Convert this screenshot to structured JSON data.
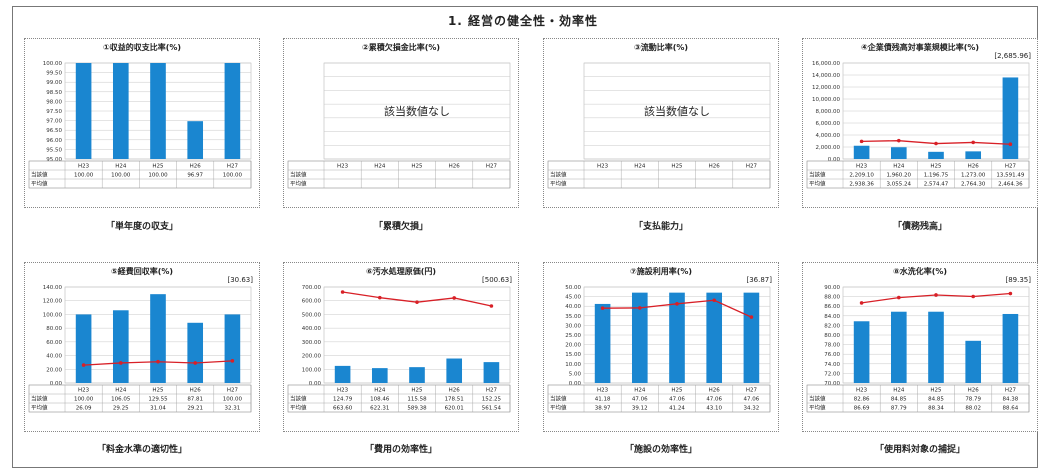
{
  "page_title": "1. 経営の健全性・効率性",
  "no_data_text": "該当数値なし",
  "row_labels": [
    "当該値",
    "平均値"
  ],
  "colors": {
    "bar": "#1a86d0",
    "line": "#d82027",
    "grid": "#c8c8c8"
  },
  "chart_data": [
    {
      "id": "c1",
      "type": "bar",
      "title": "①収益的収支比率(%)",
      "caption": "「単年度の収支」",
      "avg_label": "",
      "categories": [
        "H23",
        "H24",
        "H25",
        "H26",
        "H27"
      ],
      "ylim": [
        95.0,
        100.0
      ],
      "y_ticks": [
        "100.00",
        "99.50",
        "99.00",
        "98.50",
        "98.00",
        "97.50",
        "97.00",
        "96.50",
        "96.00",
        "95.50",
        "95.00"
      ],
      "series": [
        {
          "name": "当該値",
          "values": [
            100.0,
            100.0,
            100.0,
            96.97,
            100.0
          ]
        }
      ],
      "table": [
        [
          "100.00",
          "100.00",
          "100.00",
          "96.97",
          "100.00"
        ],
        [
          "",
          "",
          "",
          "",
          ""
        ]
      ]
    },
    {
      "id": "c2",
      "type": "bar",
      "title": "②累積欠損金比率(%)",
      "caption": "「累積欠損」",
      "avg_label": "",
      "no_data": true,
      "categories": [
        "H23",
        "H24",
        "H25",
        "H26",
        "H27"
      ],
      "ylim": [
        0,
        1
      ],
      "y_ticks": [
        "",
        "",
        "",
        "",
        "",
        "",
        "",
        ""
      ],
      "series": [],
      "table": [
        [
          "",
          "",
          "",
          "",
          ""
        ],
        [
          "",
          "",
          "",
          "",
          ""
        ]
      ]
    },
    {
      "id": "c3",
      "type": "bar",
      "title": "③流動比率(%)",
      "caption": "「支払能力」",
      "avg_label": "",
      "no_data": true,
      "categories": [
        "H23",
        "H24",
        "H25",
        "H26",
        "H27"
      ],
      "ylim": [
        0,
        1
      ],
      "y_ticks": [
        "",
        "",
        "",
        "",
        "",
        "",
        "",
        ""
      ],
      "series": [],
      "table": [
        [
          "",
          "",
          "",
          "",
          ""
        ],
        [
          "",
          "",
          "",
          "",
          ""
        ]
      ]
    },
    {
      "id": "c4",
      "type": "bar",
      "title": "④企業債残高対事業規模比率(%)",
      "caption": "「債務残高」",
      "avg_label": "[2,685.96]",
      "categories": [
        "H23",
        "H24",
        "H25",
        "H26",
        "H27"
      ],
      "ylim": [
        0,
        16000
      ],
      "y_ticks": [
        "16,000.00",
        "14,000.00",
        "12,000.00",
        "10,000.00",
        "8,000.00",
        "6,000.00",
        "4,000.00",
        "2,000.00",
        "0.00"
      ],
      "series": [
        {
          "name": "当該値",
          "values": [
            2209.1,
            1960.2,
            1196.75,
            1273.0,
            13591.49
          ]
        },
        {
          "name": "平均値",
          "values": [
            2938.36,
            3055.24,
            2574.47,
            2764.3,
            2464.36
          ]
        }
      ],
      "table": [
        [
          "2,209.10",
          "1,960.20",
          "1,196.75",
          "1,273.00",
          "13,591.49"
        ],
        [
          "2,938.36",
          "3,055.24",
          "2,574.47",
          "2,764.30",
          "2,464.36"
        ]
      ]
    },
    {
      "id": "c5",
      "type": "bar",
      "title": "⑤経費回収率(%)",
      "caption": "「料金水準の適切性」",
      "avg_label": "[30.63]",
      "categories": [
        "H23",
        "H24",
        "H25",
        "H26",
        "H27"
      ],
      "ylim": [
        0,
        140
      ],
      "y_ticks": [
        "140.00",
        "120.00",
        "100.00",
        "80.00",
        "60.00",
        "40.00",
        "20.00",
        "0.00"
      ],
      "series": [
        {
          "name": "当該値",
          "values": [
            100.0,
            106.05,
            129.55,
            87.81,
            100.0
          ]
        },
        {
          "name": "平均値",
          "values": [
            26.09,
            29.25,
            31.04,
            29.21,
            32.31
          ]
        }
      ],
      "table": [
        [
          "100.00",
          "106.05",
          "129.55",
          "87.81",
          "100.00"
        ],
        [
          "26.09",
          "29.25",
          "31.04",
          "29.21",
          "32.31"
        ]
      ]
    },
    {
      "id": "c6",
      "type": "bar",
      "title": "⑥汚水処理原価(円)",
      "caption": "「費用の効率性」",
      "avg_label": "[500.63]",
      "categories": [
        "H23",
        "H24",
        "H25",
        "H26",
        "H27"
      ],
      "ylim": [
        0,
        700
      ],
      "y_ticks": [
        "700.00",
        "600.00",
        "500.00",
        "400.00",
        "300.00",
        "200.00",
        "100.00",
        "0.00"
      ],
      "series": [
        {
          "name": "当該値",
          "values": [
            124.79,
            108.46,
            115.58,
            178.51,
            152.25
          ]
        },
        {
          "name": "平均値",
          "values": [
            663.6,
            622.31,
            589.38,
            620.01,
            561.54
          ]
        }
      ],
      "table": [
        [
          "124.79",
          "108.46",
          "115.58",
          "178.51",
          "152.25"
        ],
        [
          "663.60",
          "622.31",
          "589.38",
          "620.01",
          "561.54"
        ]
      ]
    },
    {
      "id": "c7",
      "type": "bar",
      "title": "⑦施設利用率(%)",
      "caption": "「施設の効率性」",
      "avg_label": "[36.87]",
      "categories": [
        "H23",
        "H24",
        "H25",
        "H26",
        "H27"
      ],
      "ylim": [
        0,
        50
      ],
      "y_ticks": [
        "50.00",
        "45.00",
        "40.00",
        "35.00",
        "30.00",
        "25.00",
        "20.00",
        "15.00",
        "10.00",
        "5.00",
        "0.00"
      ],
      "series": [
        {
          "name": "当該値",
          "values": [
            41.18,
            47.06,
            47.06,
            47.06,
            47.06
          ]
        },
        {
          "name": "平均値",
          "values": [
            38.97,
            39.12,
            41.24,
            43.1,
            34.32
          ]
        }
      ],
      "table": [
        [
          "41.18",
          "47.06",
          "47.06",
          "47.06",
          "47.06"
        ],
        [
          "38.97",
          "39.12",
          "41.24",
          "43.10",
          "34.32"
        ]
      ]
    },
    {
      "id": "c8",
      "type": "bar",
      "title": "⑧水洗化率(%)",
      "caption": "「使用料対象の捕捉」",
      "avg_label": "[89.35]",
      "categories": [
        "H23",
        "H24",
        "H25",
        "H26",
        "H27"
      ],
      "ylim": [
        70,
        90
      ],
      "y_ticks": [
        "90.00",
        "88.00",
        "86.00",
        "84.00",
        "82.00",
        "80.00",
        "78.00",
        "76.00",
        "74.00",
        "72.00",
        "70.00"
      ],
      "series": [
        {
          "name": "当該値",
          "values": [
            82.86,
            84.85,
            84.85,
            78.79,
            84.38
          ]
        },
        {
          "name": "平均値",
          "values": [
            86.69,
            87.79,
            88.34,
            88.02,
            88.64
          ]
        }
      ],
      "table": [
        [
          "82.86",
          "84.85",
          "84.85",
          "78.79",
          "84.38"
        ],
        [
          "86.69",
          "87.79",
          "88.34",
          "88.02",
          "88.64"
        ]
      ]
    }
  ]
}
